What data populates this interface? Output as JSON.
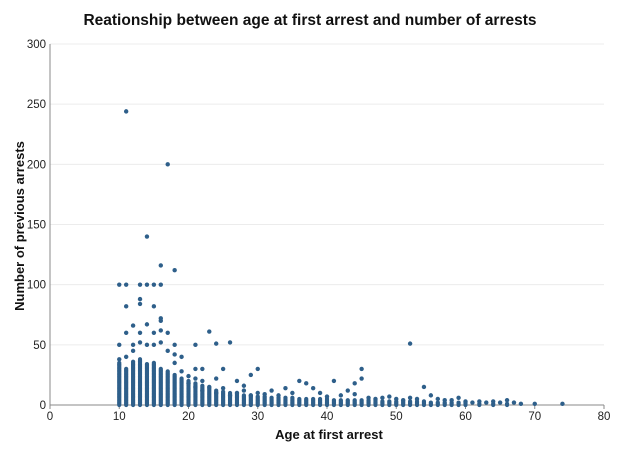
{
  "chart_data": {
    "type": "scatter",
    "title": "Reationship between age at first arrest and number of arrests",
    "xlabel": "Age at first arrest",
    "ylabel": "Number of previous arrests",
    "xlim": [
      0,
      80
    ],
    "ylim": [
      0,
      300
    ],
    "x_ticks": [
      "0",
      "10",
      "20",
      "30",
      "40",
      "50",
      "60",
      "70",
      "80"
    ],
    "y_ticks": [
      "0",
      "50",
      "100",
      "150",
      "200",
      "250",
      "300"
    ],
    "grid": "horizontal",
    "legend": "none",
    "marker_color": "#2e5f8a",
    "points": [
      [
        11,
        244
      ],
      [
        17,
        200
      ],
      [
        18,
        112
      ],
      [
        16,
        116
      ],
      [
        14,
        140
      ],
      [
        10,
        100
      ],
      [
        11,
        100
      ],
      [
        13,
        100
      ],
      [
        14,
        100
      ],
      [
        15,
        100
      ],
      [
        16,
        100
      ],
      [
        11,
        82
      ],
      [
        13,
        88
      ],
      [
        13,
        84
      ],
      [
        15,
        82
      ],
      [
        16,
        72
      ],
      [
        16,
        70
      ],
      [
        19,
        40
      ],
      [
        12,
        66
      ],
      [
        14,
        67
      ],
      [
        11,
        60
      ],
      [
        13,
        60
      ],
      [
        15,
        60
      ],
      [
        16,
        62
      ],
      [
        17,
        60
      ],
      [
        10,
        50
      ],
      [
        12,
        50
      ],
      [
        13,
        52
      ],
      [
        14,
        50
      ],
      [
        15,
        50
      ],
      [
        16,
        52
      ],
      [
        18,
        50
      ],
      [
        21,
        50
      ],
      [
        23,
        61
      ],
      [
        24,
        51
      ],
      [
        26,
        52
      ],
      [
        52,
        51
      ],
      [
        21,
        30
      ],
      [
        22,
        30
      ],
      [
        25,
        30
      ],
      [
        27,
        20
      ],
      [
        28,
        16
      ],
      [
        29,
        25
      ],
      [
        30,
        30
      ],
      [
        32,
        12
      ],
      [
        34,
        14
      ],
      [
        36,
        20
      ],
      [
        37,
        18
      ],
      [
        38,
        14
      ],
      [
        41,
        20
      ],
      [
        44,
        18
      ],
      [
        45,
        30
      ],
      [
        45,
        22
      ],
      [
        54,
        15
      ],
      [
        55,
        8
      ],
      [
        52,
        6
      ],
      [
        57,
        4
      ],
      [
        59,
        6
      ],
      [
        60,
        3
      ],
      [
        61,
        2
      ],
      [
        62,
        3
      ],
      [
        63,
        2
      ],
      [
        64,
        3
      ],
      [
        65,
        2
      ],
      [
        66,
        4
      ],
      [
        67,
        2
      ],
      [
        68,
        1
      ],
      [
        70,
        1
      ],
      [
        74,
        1
      ],
      [
        20,
        18
      ],
      [
        21,
        15
      ],
      [
        22,
        12
      ],
      [
        23,
        15
      ],
      [
        24,
        10
      ],
      [
        25,
        14
      ],
      [
        26,
        8
      ],
      [
        27,
        10
      ],
      [
        28,
        12
      ],
      [
        29,
        8
      ],
      [
        30,
        10
      ],
      [
        31,
        9
      ],
      [
        33,
        8
      ],
      [
        35,
        10
      ],
      [
        39,
        10
      ],
      [
        40,
        7
      ],
      [
        42,
        8
      ],
      [
        43,
        12
      ],
      [
        44,
        9
      ],
      [
        46,
        6
      ],
      [
        47,
        5
      ],
      [
        48,
        6
      ],
      [
        49,
        7
      ],
      [
        50,
        5
      ],
      [
        51,
        4
      ],
      [
        53,
        5
      ],
      [
        56,
        5
      ],
      [
        58,
        4
      ],
      [
        18,
        35
      ],
      [
        19,
        28
      ],
      [
        20,
        24
      ],
      [
        21,
        22
      ],
      [
        22,
        20
      ],
      [
        24,
        22
      ],
      [
        17,
        45
      ],
      [
        18,
        42
      ],
      [
        12,
        45
      ],
      [
        11,
        40
      ],
      [
        10,
        38
      ]
    ],
    "dense_band": [
      {
        "x": 10,
        "max": 35
      },
      {
        "x": 11,
        "max": 30
      },
      {
        "x": 12,
        "max": 36
      },
      {
        "x": 13,
        "max": 38
      },
      {
        "x": 14,
        "max": 34
      },
      {
        "x": 15,
        "max": 35
      },
      {
        "x": 16,
        "max": 30
      },
      {
        "x": 17,
        "max": 28
      },
      {
        "x": 18,
        "max": 25
      },
      {
        "x": 19,
        "max": 22
      },
      {
        "x": 20,
        "max": 20
      },
      {
        "x": 21,
        "max": 18
      },
      {
        "x": 22,
        "max": 16
      },
      {
        "x": 23,
        "max": 14
      },
      {
        "x": 24,
        "max": 12
      },
      {
        "x": 25,
        "max": 11
      },
      {
        "x": 26,
        "max": 10
      },
      {
        "x": 27,
        "max": 9
      },
      {
        "x": 28,
        "max": 8
      },
      {
        "x": 29,
        "max": 8
      },
      {
        "x": 30,
        "max": 7
      },
      {
        "x": 31,
        "max": 7
      },
      {
        "x": 32,
        "max": 6
      },
      {
        "x": 33,
        "max": 6
      },
      {
        "x": 34,
        "max": 6
      },
      {
        "x": 35,
        "max": 6
      },
      {
        "x": 36,
        "max": 5
      },
      {
        "x": 37,
        "max": 5
      },
      {
        "x": 38,
        "max": 5
      },
      {
        "x": 39,
        "max": 5
      },
      {
        "x": 40,
        "max": 5
      },
      {
        "x": 41,
        "max": 4
      },
      {
        "x": 42,
        "max": 4
      },
      {
        "x": 43,
        "max": 4
      },
      {
        "x": 44,
        "max": 4
      },
      {
        "x": 45,
        "max": 4
      },
      {
        "x": 46,
        "max": 4
      },
      {
        "x": 47,
        "max": 4
      },
      {
        "x": 48,
        "max": 3
      },
      {
        "x": 49,
        "max": 3
      },
      {
        "x": 50,
        "max": 3
      },
      {
        "x": 51,
        "max": 3
      },
      {
        "x": 52,
        "max": 3
      },
      {
        "x": 53,
        "max": 3
      },
      {
        "x": 54,
        "max": 3
      },
      {
        "x": 55,
        "max": 2
      },
      {
        "x": 56,
        "max": 2
      },
      {
        "x": 57,
        "max": 2
      },
      {
        "x": 58,
        "max": 2
      },
      {
        "x": 59,
        "max": 2
      },
      {
        "x": 60,
        "max": 2
      },
      {
        "x": 62,
        "max": 1
      },
      {
        "x": 64,
        "max": 1
      },
      {
        "x": 66,
        "max": 1
      }
    ]
  }
}
